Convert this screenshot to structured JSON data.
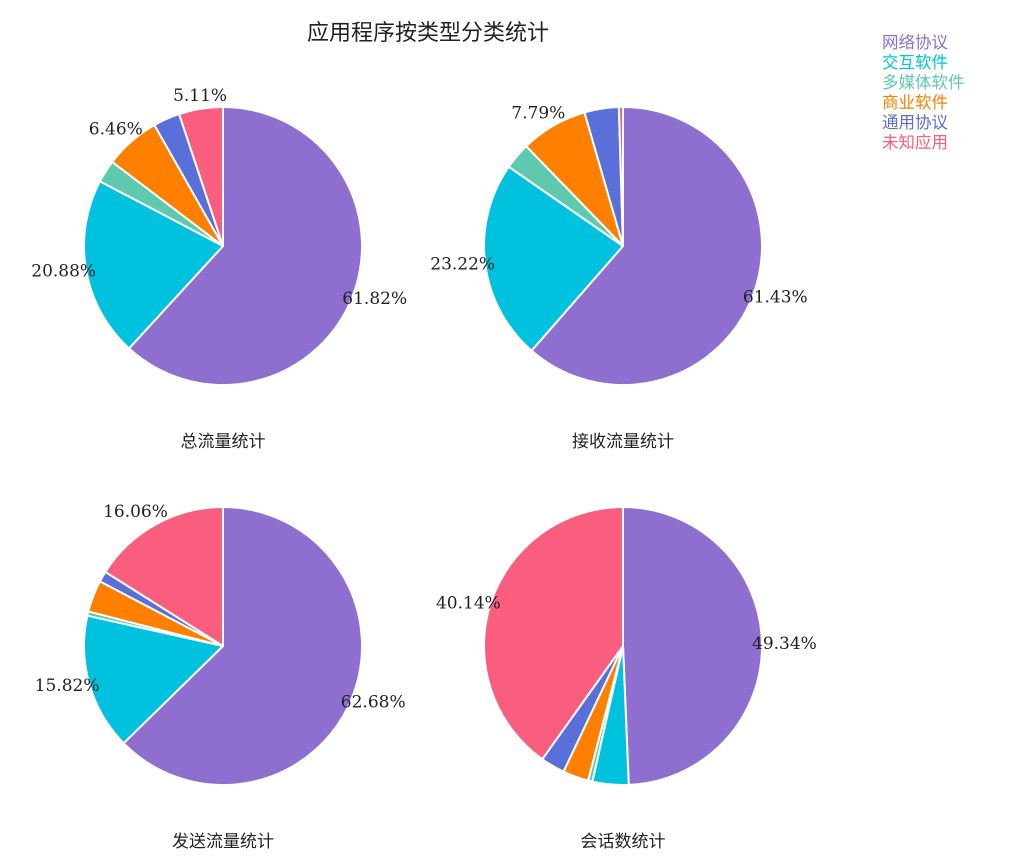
{
  "title": "应用程序按类型分类统计",
  "legend": [
    {
      "name": "网络协议",
      "color": "#8e6fd0"
    },
    {
      "name": "交互软件",
      "color": "#00c2de"
    },
    {
      "name": "多媒体软件",
      "color": "#5fc9b0"
    },
    {
      "name": "商业软件",
      "color": "#ff7f00"
    },
    {
      "name": "通用协议",
      "color": "#5b6fdb"
    },
    {
      "name": "未知应用",
      "color": "#f95e7f"
    }
  ],
  "chart_data": [
    {
      "type": "pie",
      "title": "总流量统计",
      "labels": [
        "网络协议",
        "交互软件",
        "多媒体软件",
        "商业软件",
        "通用协议",
        "未知应用"
      ],
      "values": [
        61.82,
        20.88,
        2.63,
        6.46,
        3.1,
        5.11
      ],
      "shown_labels": [
        "61.82%",
        "20.88%",
        "",
        "6.46%",
        "",
        "5.11%"
      ]
    },
    {
      "type": "pie",
      "title": "接收流量统计",
      "labels": [
        "网络协议",
        "交互软件",
        "多媒体软件",
        "商业软件",
        "通用协议",
        "未知应用"
      ],
      "values": [
        61.43,
        23.22,
        3.09,
        7.79,
        4.0,
        0.47
      ],
      "shown_labels": [
        "61.43%",
        "23.22%",
        "",
        "7.79%",
        "",
        ""
      ]
    },
    {
      "type": "pie",
      "title": "发送流量统计",
      "labels": [
        "网络协议",
        "交互软件",
        "多媒体软件",
        "商业软件",
        "通用协议",
        "未知应用"
      ],
      "values": [
        62.68,
        15.82,
        0.5,
        3.69,
        1.25,
        16.06
      ],
      "shown_labels": [
        "62.68%",
        "15.82%",
        "",
        "",
        "",
        "16.06%"
      ]
    },
    {
      "type": "pie",
      "title": "会话数统计",
      "labels": [
        "网络协议",
        "交互软件",
        "多媒体软件",
        "商业软件",
        "通用协议",
        "未知应用"
      ],
      "values": [
        49.34,
        4.2,
        0.5,
        3.0,
        2.82,
        40.14
      ],
      "shown_labels": [
        "49.34%",
        "",
        "",
        "",
        "",
        "40.14%"
      ]
    }
  ]
}
